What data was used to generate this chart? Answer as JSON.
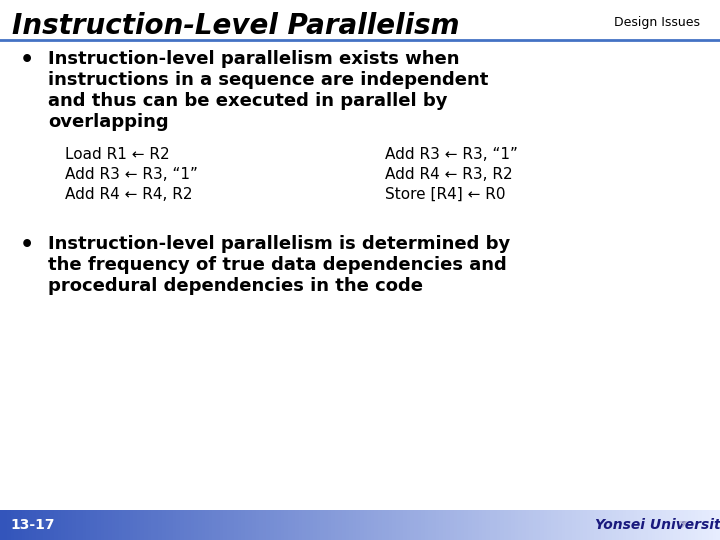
{
  "title": "Instruction-Level Parallelism",
  "subtitle": "Design Issues",
  "bg_color": "#ffffff",
  "title_color": "#000000",
  "subtitle_color": "#000000",
  "header_line_color": "#4472c4",
  "footer_text": "13-17",
  "footer_university": "Yonsei University",
  "lines1": [
    "Instruction-level parallelism exists when",
    "instructions in a sequence are independent",
    "and thus can be executed in parallel by",
    "overlapping"
  ],
  "code_left": [
    "Load R1 ← R2",
    "Add R3 ← R3, “1”",
    "Add R4 ← R4, R2"
  ],
  "code_right": [
    "Add R3 ← R3, “1”",
    "Add R4 ← R3, R2",
    "Store [R4] ← R0"
  ],
  "lines2": [
    "Instruction-level parallelism is determined by",
    "the frequency of true data dependencies and",
    "procedural dependencies in the code"
  ],
  "title_fontsize": 20,
  "subtitle_fontsize": 9,
  "bullet_fontsize": 13,
  "code_fontsize": 11,
  "footer_fontsize": 10
}
